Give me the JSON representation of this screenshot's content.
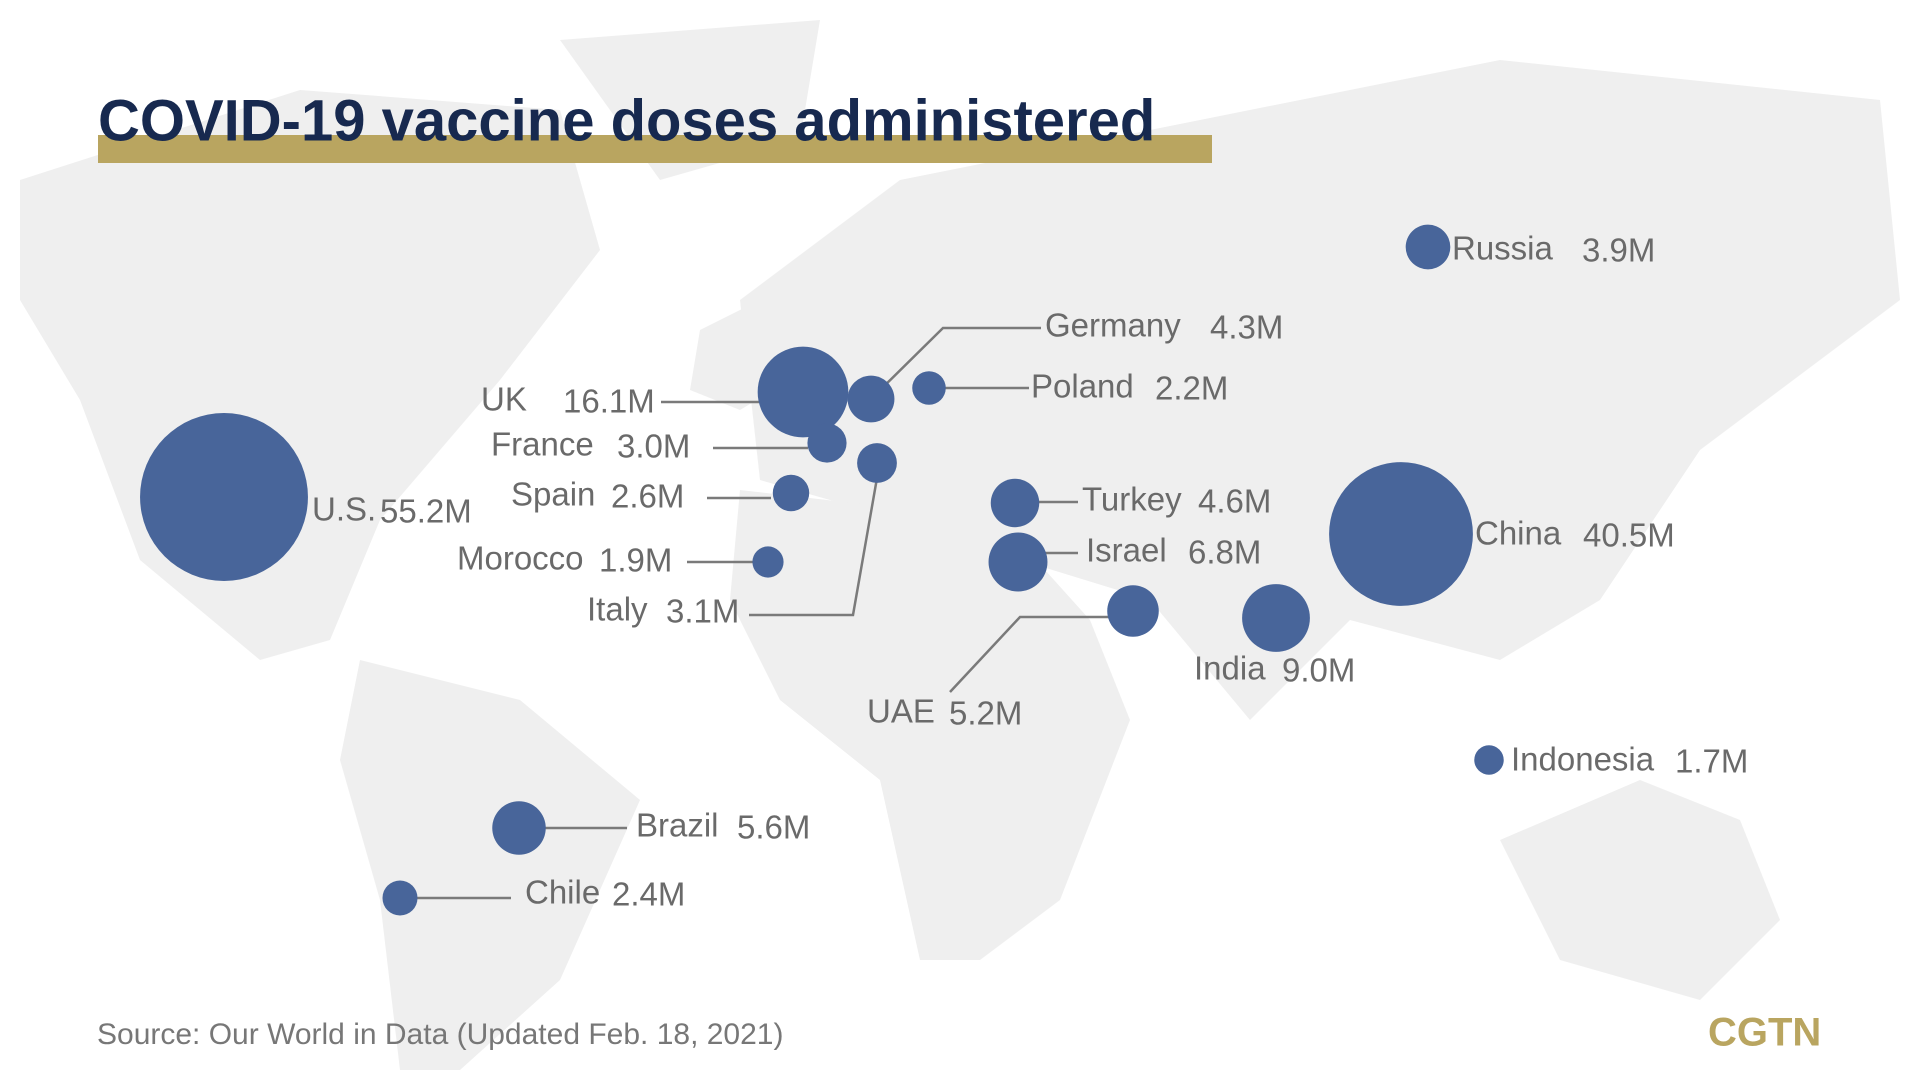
{
  "chart_data": {
    "type": "bubble",
    "title": "COVID-19 vaccine doses administered",
    "source": "Source: Our World in Data (Updated Feb. 18, 2021)",
    "brand": "CGTN",
    "color": "#48659a",
    "categories": [
      "U.S.",
      "China",
      "UK",
      "India",
      "Israel",
      "Brazil",
      "UAE",
      "Turkey",
      "Germany",
      "Russia",
      "Italy",
      "France",
      "Spain",
      "Poland",
      "Chile",
      "Morocco",
      "Indonesia"
    ],
    "values": [
      55.2,
      40.5,
      16.1,
      9.0,
      6.8,
      5.6,
      5.2,
      4.6,
      4.3,
      3.9,
      3.1,
      3.0,
      2.6,
      2.2,
      2.4,
      1.9,
      1.7
    ],
    "value_labels": [
      "55.2M",
      "40.5M",
      "16.1M",
      "9.0M",
      "6.8M",
      "5.6M",
      "5.2M",
      "4.6M",
      "4.3M",
      "3.9M",
      "3.1M",
      "3.0M",
      "2.6M",
      "2.2M",
      "2.4M",
      "1.9M",
      "1.7M"
    ]
  }
}
